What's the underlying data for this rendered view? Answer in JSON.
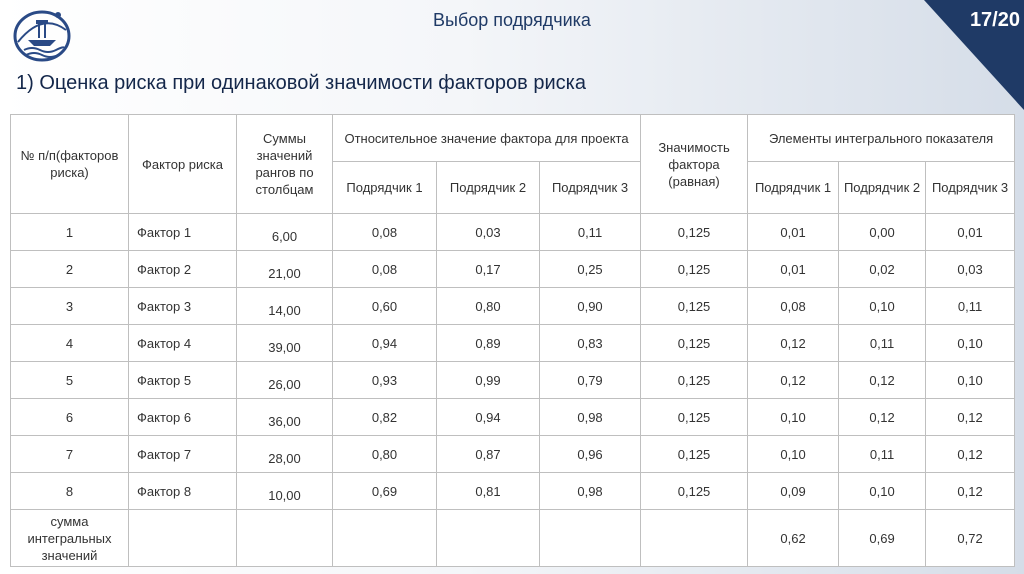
{
  "header": {
    "title": "Выбор подрядчика",
    "slide_number": "17/20",
    "accent_color": "#1f3a66"
  },
  "subtitle": "1) Оценка риска при одинаковой значимости факторов риска",
  "table": {
    "headers": {
      "num": "№ п/п(факторов риска)",
      "factor": "Фактор риска",
      "sums": "Суммы значений рангов по столбцам",
      "relative": "Относительное значение фактора для проекта",
      "weight": "Значимость фактора (равная)",
      "integral": "Элементы интегрального показателя",
      "contractor1": "Подрядчик 1",
      "contractor2": "Подрядчик 2",
      "contractor3": "Подрядчик 3",
      "integral_c1": "Подрядчик 1",
      "integral_c2": "Подрядчик 2",
      "integral_c3": "Подрядчик 3"
    },
    "rows": [
      {
        "num": "1",
        "factor": "Фактор 1",
        "sum": "6,00",
        "r1": "0,08",
        "r2": "0,03",
        "r3": "0,11",
        "w": "0,125",
        "e1": "0,01",
        "e2": "0,00",
        "e3": "0,01"
      },
      {
        "num": "2",
        "factor": "Фактор 2",
        "sum": "21,00",
        "r1": "0,08",
        "r2": "0,17",
        "r3": "0,25",
        "w": "0,125",
        "e1": "0,01",
        "e2": "0,02",
        "e3": "0,03"
      },
      {
        "num": "3",
        "factor": "Фактор 3",
        "sum": "14,00",
        "r1": "0,60",
        "r2": "0,80",
        "r3": "0,90",
        "w": "0,125",
        "e1": "0,08",
        "e2": "0,10",
        "e3": "0,11"
      },
      {
        "num": "4",
        "factor": "Фактор 4",
        "sum": "39,00",
        "r1": "0,94",
        "r2": "0,89",
        "r3": "0,83",
        "w": "0,125",
        "e1": "0,12",
        "e2": "0,11",
        "e3": "0,10"
      },
      {
        "num": "5",
        "factor": "Фактор 5",
        "sum": "26,00",
        "r1": "0,93",
        "r2": "0,99",
        "r3": "0,79",
        "w": "0,125",
        "e1": "0,12",
        "e2": "0,12",
        "e3": "0,10"
      },
      {
        "num": "6",
        "factor": "Фактор 6",
        "sum": "36,00",
        "r1": "0,82",
        "r2": "0,94",
        "r3": "0,98",
        "w": "0,125",
        "e1": "0,10",
        "e2": "0,12",
        "e3": "0,12"
      },
      {
        "num": "7",
        "factor": "Фактор 7",
        "sum": "28,00",
        "r1": "0,80",
        "r2": "0,87",
        "r3": "0,96",
        "w": "0,125",
        "e1": "0,10",
        "e2": "0,11",
        "e3": "0,12"
      },
      {
        "num": "8",
        "factor": "Фактор 8",
        "sum": "10,00",
        "r1": "0,69",
        "r2": "0,81",
        "r3": "0,98",
        "w": "0,125",
        "e1": "0,09",
        "e2": "0,10",
        "e3": "0,12"
      }
    ],
    "sum_row": {
      "label": "сумма интегральных значений",
      "e1": "0,62",
      "e2": "0,69",
      "e3": "0,72"
    }
  }
}
